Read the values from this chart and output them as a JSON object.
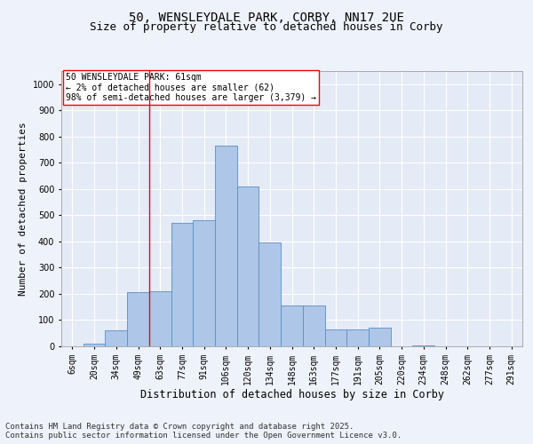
{
  "title1": "50, WENSLEYDALE PARK, CORBY, NN17 2UE",
  "title2": "Size of property relative to detached houses in Corby",
  "xlabel": "Distribution of detached houses by size in Corby",
  "ylabel": "Number of detached properties",
  "categories": [
    "6sqm",
    "20sqm",
    "34sqm",
    "49sqm",
    "63sqm",
    "77sqm",
    "91sqm",
    "106sqm",
    "120sqm",
    "134sqm",
    "148sqm",
    "163sqm",
    "177sqm",
    "191sqm",
    "205sqm",
    "220sqm",
    "234sqm",
    "248sqm",
    "262sqm",
    "277sqm",
    "291sqm"
  ],
  "values": [
    0,
    10,
    60,
    205,
    210,
    470,
    480,
    765,
    610,
    395,
    155,
    155,
    65,
    65,
    70,
    0,
    5,
    0,
    0,
    0,
    0
  ],
  "bar_color": "#aec6e8",
  "bar_edge_color": "#5a8fc2",
  "vline_x_index": 3.5,
  "vline_color": "red",
  "annotation_text": "50 WENSLEYDALE PARK: 61sqm\n← 2% of detached houses are smaller (62)\n98% of semi-detached houses are larger (3,379) →",
  "annotation_box_color": "white",
  "annotation_box_edge_color": "red",
  "ylim": [
    0,
    1050
  ],
  "yticks": [
    0,
    100,
    200,
    300,
    400,
    500,
    600,
    700,
    800,
    900,
    1000
  ],
  "footer": "Contains HM Land Registry data © Crown copyright and database right 2025.\nContains public sector information licensed under the Open Government Licence v3.0.",
  "bg_color": "#eef2fa",
  "plot_bg_color": "#e4eaf6",
  "grid_color": "#ffffff",
  "title_fontsize": 10,
  "subtitle_fontsize": 9,
  "tick_fontsize": 7,
  "footer_fontsize": 6.5,
  "ylabel_fontsize": 8,
  "xlabel_fontsize": 8.5
}
